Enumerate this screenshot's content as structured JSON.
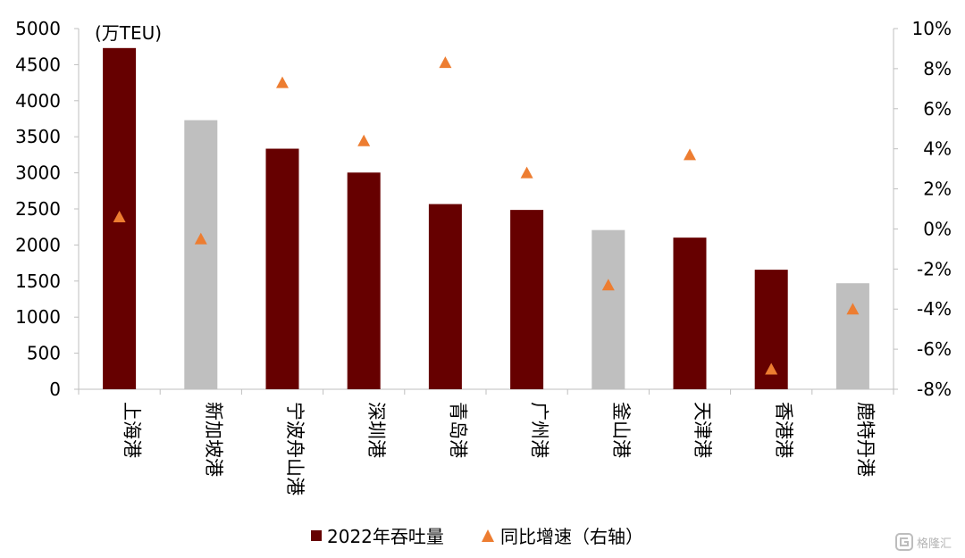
{
  "chart_data": {
    "type": "bar",
    "unit_label": "(万TEU)",
    "categories": [
      "上海港",
      "新加坡港",
      "宁波舟山港",
      "深圳港",
      "青岛港",
      "广州港",
      "釜山港",
      "天津港",
      "香港港",
      "鹿特丹港"
    ],
    "series": [
      {
        "name": "2022年吞吐量",
        "type": "bar",
        "axis": "left",
        "values": [
          4730,
          3730,
          3335,
          3004,
          2567,
          2486,
          2207,
          2102,
          1657,
          1470
        ]
      },
      {
        "name": "同比增速（右轴）",
        "type": "scatter",
        "axis": "right",
        "marker": "triangle",
        "values": [
          0.6,
          -0.5,
          7.3,
          4.4,
          8.3,
          2.8,
          -2.8,
          3.7,
          -7.0,
          -4.0
        ]
      }
    ],
    "bar_colors": [
      "#660000",
      "#bfbfbf",
      "#660000",
      "#660000",
      "#660000",
      "#660000",
      "#bfbfbf",
      "#660000",
      "#660000",
      "#bfbfbf"
    ],
    "marker_color": "#ed7d31",
    "y_left": {
      "min": 0,
      "max": 5000,
      "step": 500,
      "ticks": [
        "0",
        "500",
        "1000",
        "1500",
        "2000",
        "2500",
        "3000",
        "3500",
        "4000",
        "4500",
        "5000"
      ]
    },
    "y_right": {
      "min": -8,
      "max": 10,
      "step": 2,
      "ticks": [
        "-8%",
        "-6%",
        "-4%",
        "-2%",
        "0%",
        "2%",
        "4%",
        "6%",
        "8%",
        "10%"
      ]
    },
    "grid": false,
    "legend_position": "bottom",
    "legend": [
      {
        "label": "2022年吞吐量",
        "symbol": "square",
        "color": "#660000"
      },
      {
        "label": "同比增速（右轴）",
        "symbol": "triangle",
        "color": "#ed7d31"
      }
    ]
  },
  "watermark": {
    "text": "格隆汇"
  }
}
